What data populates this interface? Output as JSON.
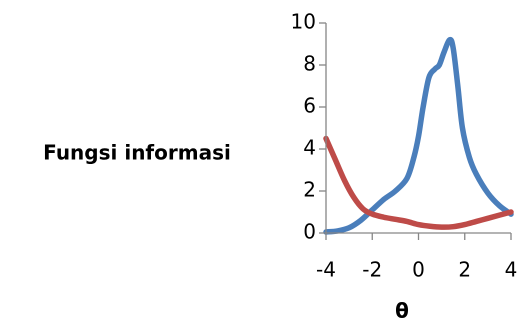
{
  "chart_data": {
    "type": "line",
    "xlabel": "θ",
    "ylabel": "Fungsi informasi",
    "xlim": [
      -4,
      4
    ],
    "ylim": [
      0,
      10
    ],
    "xticks": [
      -4,
      -2,
      0,
      2,
      4
    ],
    "yticks": [
      0,
      2,
      4,
      6,
      8,
      10
    ],
    "xtick_labels": [
      "-4",
      "-2",
      "0",
      "2",
      "4"
    ],
    "ytick_labels": [
      "0",
      "2",
      "4",
      "6",
      "8",
      "10"
    ],
    "grid": false,
    "legend": false,
    "series": [
      {
        "color": "#4a7ebb",
        "points": [
          [
            -4.0,
            0.05
          ],
          [
            -3.5,
            0.1
          ],
          [
            -3.0,
            0.25
          ],
          [
            -2.5,
            0.6
          ],
          [
            -2.0,
            1.1
          ],
          [
            -1.5,
            1.6
          ],
          [
            -1.0,
            2.0
          ],
          [
            -0.5,
            2.6
          ],
          [
            -0.2,
            3.6
          ],
          [
            0.0,
            4.6
          ],
          [
            0.2,
            6.0
          ],
          [
            0.45,
            7.4
          ],
          [
            0.7,
            7.8
          ],
          [
            0.9,
            8.0
          ],
          [
            1.1,
            8.6
          ],
          [
            1.35,
            9.2
          ],
          [
            1.5,
            8.8
          ],
          [
            1.7,
            7.0
          ],
          [
            1.9,
            5.0
          ],
          [
            2.2,
            3.6
          ],
          [
            2.5,
            2.8
          ],
          [
            3.0,
            1.9
          ],
          [
            3.5,
            1.3
          ],
          [
            4.0,
            0.9
          ]
        ]
      },
      {
        "color": "#be4b48",
        "points": [
          [
            -4.0,
            4.5
          ],
          [
            -3.6,
            3.5
          ],
          [
            -3.2,
            2.5
          ],
          [
            -2.8,
            1.7
          ],
          [
            -2.4,
            1.15
          ],
          [
            -2.0,
            0.9
          ],
          [
            -1.5,
            0.75
          ],
          [
            -1.0,
            0.65
          ],
          [
            -0.5,
            0.55
          ],
          [
            0.0,
            0.4
          ],
          [
            0.5,
            0.32
          ],
          [
            1.0,
            0.28
          ],
          [
            1.5,
            0.3
          ],
          [
            2.0,
            0.4
          ],
          [
            2.5,
            0.55
          ],
          [
            3.0,
            0.7
          ],
          [
            3.5,
            0.85
          ],
          [
            4.0,
            1.0
          ]
        ]
      }
    ]
  }
}
